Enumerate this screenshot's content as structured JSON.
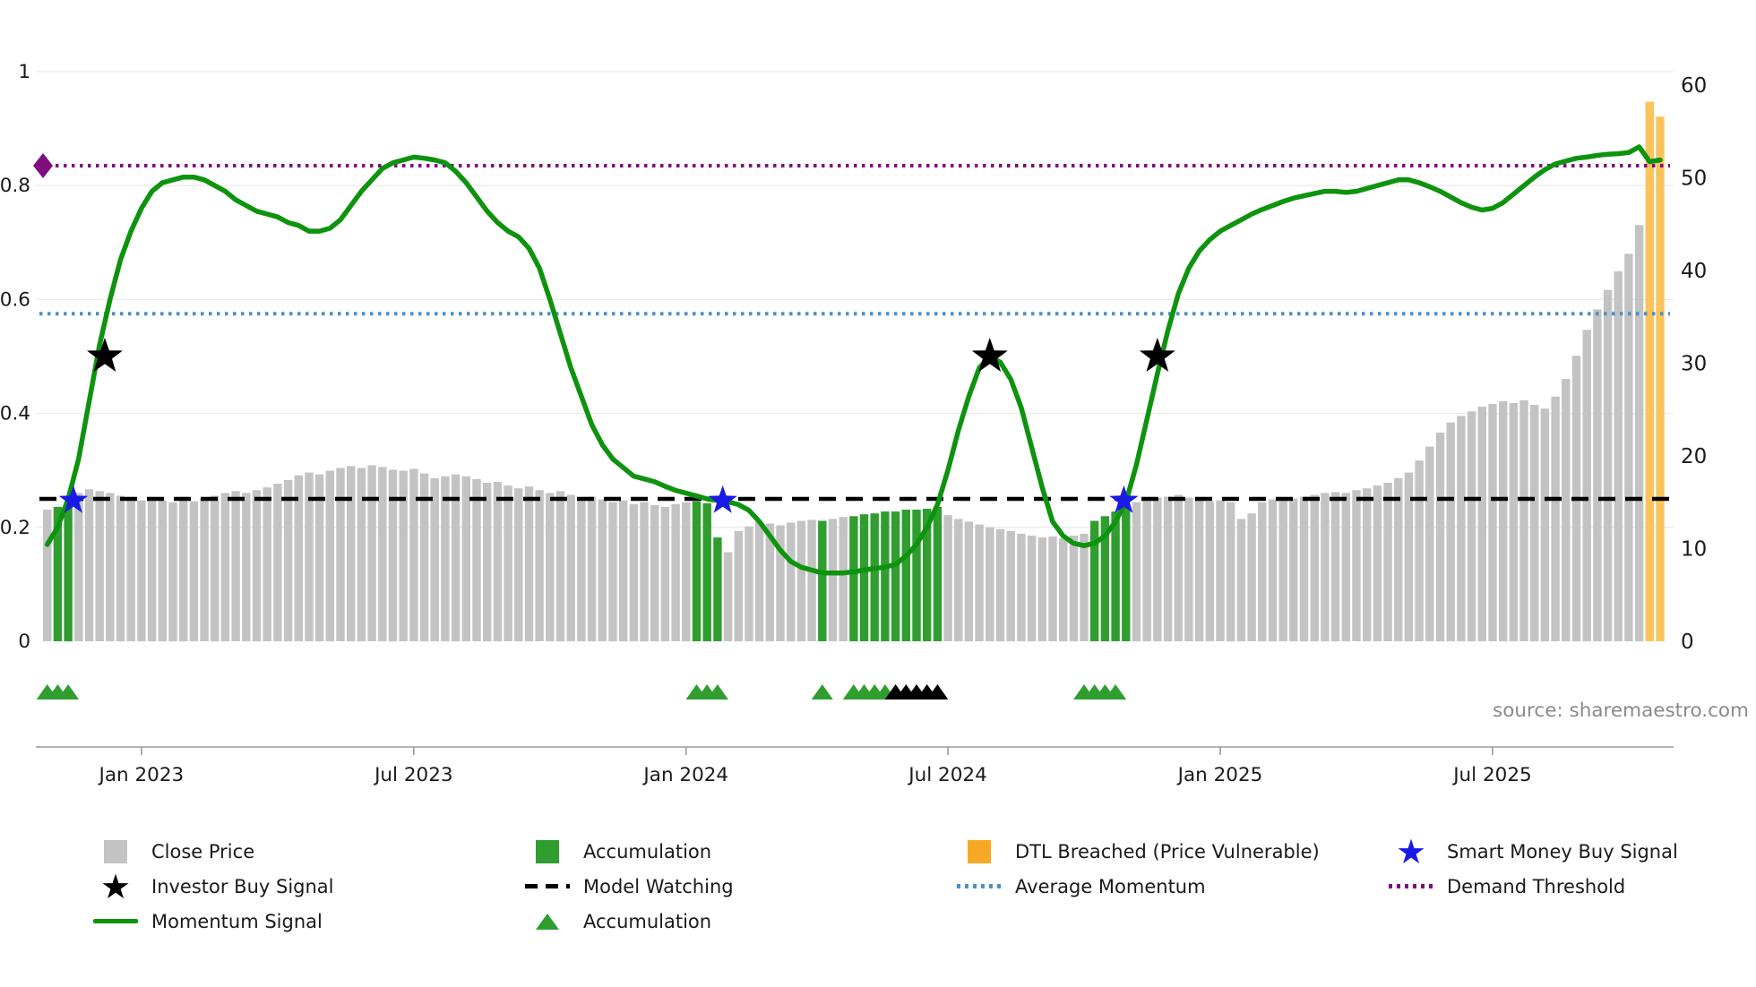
{
  "source": "source: sharemaestro.com",
  "colors": {
    "close_price": "#c3c3c3",
    "accumulation": "#2f9e2f",
    "momentum_line": "#0e930e",
    "dtl_breached_bar": "#fbc35c",
    "dtl_breached_legend": "#f7a825",
    "model_watching": "#000000",
    "average_momentum": "#4a90c9",
    "demand_threshold": "#800d80",
    "smart_money_star": "#1a1ae6",
    "investor_star": "#000000",
    "grid": "#ebebeb",
    "axis": "#999999",
    "tick_text": "#1a1a1a",
    "source_text": "#8a8a8a"
  },
  "legend": {
    "columns": [
      {
        "items": [
          {
            "label": "Close Price",
            "icon": "square",
            "color_key": "close_price"
          },
          {
            "label": "Investor Buy Signal",
            "icon": "star",
            "color_key": "investor_star"
          },
          {
            "label": "Momentum Signal",
            "icon": "line",
            "color_key": "momentum_line"
          }
        ]
      },
      {
        "items": [
          {
            "label": "Accumulation",
            "icon": "square",
            "color_key": "accumulation"
          },
          {
            "label": "Model Watching",
            "icon": "dashed-line",
            "color_key": "model_watching"
          },
          {
            "label": "Accumulation",
            "icon": "triangle",
            "color_key": "accumulation"
          }
        ]
      },
      {
        "items": [
          {
            "label": "DTL Breached (Price Vulnerable)",
            "icon": "square",
            "color_key": "dtl_breached_legend"
          },
          {
            "label": "Average Momentum",
            "icon": "dotted-line",
            "color_key": "average_momentum"
          }
        ]
      },
      {
        "items": [
          {
            "label": "Smart Money Buy Signal",
            "icon": "star",
            "color_key": "smart_money_star"
          },
          {
            "label": "Demand Threshold",
            "icon": "dotted-line",
            "color_key": "demand_threshold"
          }
        ]
      }
    ]
  },
  "chart_data": {
    "type": "bar+line",
    "frequency": "weekly",
    "x_range": [
      "Nov 2022",
      "Nov 2025"
    ],
    "x_tick_labels": [
      "Jan 2023",
      "Jul 2023",
      "Jan 2024",
      "Jul 2024",
      "Jan 2025",
      "Jul 2025"
    ],
    "x_tick_indices": [
      9,
      35,
      61,
      86,
      112,
      138
    ],
    "left_axis": {
      "range": [
        0,
        1
      ],
      "ticks": [
        "0",
        "0.2",
        "0.4",
        "0.6",
        "0.8",
        "1"
      ],
      "tick_values": [
        0,
        0.2,
        0.4,
        0.6,
        0.8,
        1
      ]
    },
    "right_axis": {
      "range": [
        0,
        60
      ],
      "ticks": [
        "0",
        "10",
        "20",
        "30",
        "40",
        "50",
        "60"
      ],
      "tick_values": [
        0,
        10,
        20,
        30,
        40,
        50,
        60
      ]
    },
    "close_price_bars": {
      "name": "Close Price",
      "axis": "right",
      "values": [
        14.2,
        14.5,
        15.0,
        16.0,
        16.4,
        16.2,
        16.0,
        15.7,
        15.4,
        15.2,
        15.4,
        15.2,
        15.0,
        15.3,
        15.1,
        15.4,
        15.7,
        16.0,
        16.2,
        16.0,
        16.3,
        16.6,
        17.0,
        17.4,
        17.9,
        18.2,
        18.0,
        18.4,
        18.7,
        18.9,
        18.7,
        19.0,
        18.8,
        18.5,
        18.4,
        18.6,
        18.1,
        17.6,
        17.8,
        18.0,
        17.8,
        17.5,
        17.1,
        17.2,
        16.8,
        16.5,
        16.7,
        16.3,
        16.0,
        16.2,
        15.8,
        15.5,
        15.6,
        15.3,
        15.0,
        15.2,
        14.8,
        15.0,
        14.7,
        14.5,
        14.8,
        15.0,
        15.1,
        14.9,
        11.2,
        9.6,
        11.9,
        12.4,
        12.9,
        12.7,
        12.5,
        12.8,
        13.0,
        13.1,
        13.0,
        13.2,
        13.4,
        13.5,
        13.7,
        13.8,
        14.0,
        14.0,
        14.2,
        14.2,
        14.3,
        14.5,
        13.6,
        13.2,
        12.9,
        12.6,
        12.3,
        12.1,
        11.9,
        11.6,
        11.4,
        11.2,
        11.3,
        11.1,
        11.4,
        11.6,
        13.0,
        13.5,
        14.0,
        14.5,
        15.0,
        15.3,
        15.5,
        15.6,
        15.8,
        15.5,
        15.3,
        15.1,
        15.2,
        15.0,
        13.2,
        13.8,
        15.0,
        15.3,
        15.5,
        15.4,
        15.6,
        15.8,
        16.0,
        16.1,
        16.0,
        16.3,
        16.5,
        16.8,
        17.1,
        17.6,
        18.2,
        19.5,
        21.0,
        22.5,
        23.6,
        24.3,
        24.8,
        25.3,
        25.6,
        25.9,
        25.7,
        26.0,
        25.5,
        25.1,
        26.4,
        28.3,
        30.8,
        33.6,
        35.8,
        37.9,
        39.9,
        41.8,
        44.9,
        58.2,
        56.6
      ]
    },
    "accumulation_bar_indices": [
      1,
      2,
      62,
      63,
      64,
      74,
      77,
      78,
      79,
      80,
      81,
      82,
      83,
      84,
      85,
      100,
      101,
      102,
      103
    ],
    "dtl_breached_bar_indices": [
      153,
      154
    ],
    "momentum_signal": {
      "name": "Momentum Signal",
      "axis": "left",
      "values": [
        0.17,
        0.2,
        0.25,
        0.32,
        0.42,
        0.52,
        0.6,
        0.67,
        0.72,
        0.76,
        0.79,
        0.805,
        0.81,
        0.815,
        0.815,
        0.81,
        0.8,
        0.79,
        0.775,
        0.765,
        0.755,
        0.75,
        0.745,
        0.735,
        0.73,
        0.72,
        0.72,
        0.725,
        0.74,
        0.765,
        0.79,
        0.81,
        0.83,
        0.84,
        0.845,
        0.85,
        0.848,
        0.845,
        0.84,
        0.825,
        0.805,
        0.78,
        0.755,
        0.735,
        0.72,
        0.71,
        0.69,
        0.655,
        0.6,
        0.54,
        0.48,
        0.43,
        0.38,
        0.345,
        0.32,
        0.305,
        0.29,
        0.285,
        0.28,
        0.272,
        0.265,
        0.26,
        0.255,
        0.25,
        0.247,
        0.245,
        0.24,
        0.23,
        0.21,
        0.185,
        0.16,
        0.14,
        0.13,
        0.125,
        0.12,
        0.12,
        0.12,
        0.122,
        0.125,
        0.128,
        0.13,
        0.135,
        0.15,
        0.17,
        0.2,
        0.24,
        0.3,
        0.37,
        0.43,
        0.48,
        0.5,
        0.49,
        0.46,
        0.41,
        0.34,
        0.27,
        0.21,
        0.185,
        0.172,
        0.168,
        0.172,
        0.185,
        0.21,
        0.245,
        0.31,
        0.39,
        0.47,
        0.545,
        0.61,
        0.655,
        0.685,
        0.705,
        0.72,
        0.73,
        0.74,
        0.75,
        0.758,
        0.765,
        0.772,
        0.778,
        0.782,
        0.786,
        0.79,
        0.79,
        0.788,
        0.79,
        0.795,
        0.8,
        0.805,
        0.81,
        0.81,
        0.805,
        0.798,
        0.79,
        0.78,
        0.77,
        0.762,
        0.757,
        0.76,
        0.77,
        0.785,
        0.8,
        0.815,
        0.828,
        0.838,
        0.843,
        0.848,
        0.85,
        0.853,
        0.855,
        0.856,
        0.858,
        0.868,
        0.842,
        0.845
      ]
    },
    "reference_lines": [
      {
        "name": "Model Watching",
        "value": 0.25,
        "style": "dashed",
        "color_key": "model_watching"
      },
      {
        "name": "Average Momentum",
        "value": 0.575,
        "style": "dotted",
        "color_key": "average_momentum"
      },
      {
        "name": "Demand Threshold",
        "value": 0.835,
        "style": "dotted",
        "color_key": "demand_threshold",
        "start_marker": "diamond"
      }
    ],
    "investor_buy_signals": {
      "y": 0.5,
      "indices": [
        5.5,
        90,
        106
      ]
    },
    "smart_money_buy_signals": {
      "y": 0.247,
      "indices": [
        2.5,
        64.5,
        102.8
      ]
    },
    "accumulation_markers": {
      "green_indices": [
        0,
        1,
        2,
        62,
        63,
        64,
        74,
        77,
        78,
        79,
        80,
        99,
        100,
        101,
        102
      ],
      "black_indices": [
        81,
        82,
        83,
        84,
        85
      ]
    }
  }
}
